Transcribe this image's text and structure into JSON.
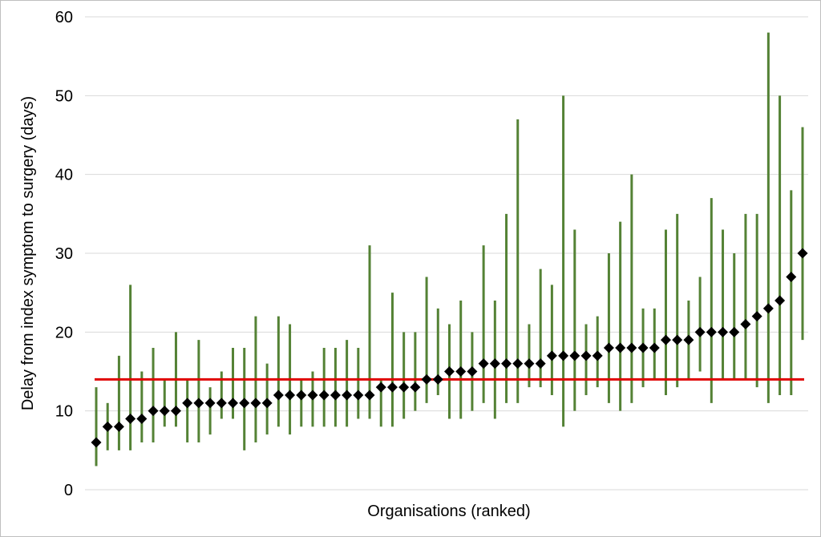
{
  "chart_data": {
    "type": "scatter",
    "title": "",
    "xlabel": "Organisations (ranked)",
    "ylabel": "Delay from index symptom to surgery (days)",
    "ylim": [
      0,
      60
    ],
    "yticks": [
      0,
      10,
      20,
      30,
      40,
      50,
      60
    ],
    "grid": true,
    "legend": "none",
    "reference_line": {
      "value": 14,
      "color": "#e00000"
    },
    "colors": {
      "point": "#000000",
      "interval": "#548235",
      "grid": "#d9d9d9"
    },
    "points": [
      {
        "rank": 1,
        "value": 6,
        "low": 3,
        "high": 13
      },
      {
        "rank": 2,
        "value": 8,
        "low": 5,
        "high": 11
      },
      {
        "rank": 3,
        "value": 8,
        "low": 5,
        "high": 17
      },
      {
        "rank": 4,
        "value": 9,
        "low": 5,
        "high": 26
      },
      {
        "rank": 5,
        "value": 9,
        "low": 6,
        "high": 15
      },
      {
        "rank": 6,
        "value": 10,
        "low": 6,
        "high": 18
      },
      {
        "rank": 7,
        "value": 10,
        "low": 8,
        "high": 14
      },
      {
        "rank": 8,
        "value": 10,
        "low": 8,
        "high": 20
      },
      {
        "rank": 9,
        "value": 11,
        "low": 6,
        "high": 14
      },
      {
        "rank": 10,
        "value": 11,
        "low": 6,
        "high": 19
      },
      {
        "rank": 11,
        "value": 11,
        "low": 7,
        "high": 13
      },
      {
        "rank": 12,
        "value": 11,
        "low": 9,
        "high": 15
      },
      {
        "rank": 13,
        "value": 11,
        "low": 9,
        "high": 18
      },
      {
        "rank": 14,
        "value": 11,
        "low": 5,
        "high": 18
      },
      {
        "rank": 15,
        "value": 11,
        "low": 6,
        "high": 22
      },
      {
        "rank": 16,
        "value": 11,
        "low": 7,
        "high": 16
      },
      {
        "rank": 17,
        "value": 12,
        "low": 8,
        "high": 22
      },
      {
        "rank": 18,
        "value": 12,
        "low": 7,
        "high": 21
      },
      {
        "rank": 19,
        "value": 12,
        "low": 8,
        "high": 14
      },
      {
        "rank": 20,
        "value": 12,
        "low": 8,
        "high": 15
      },
      {
        "rank": 21,
        "value": 12,
        "low": 8,
        "high": 18
      },
      {
        "rank": 22,
        "value": 12,
        "low": 8,
        "high": 18
      },
      {
        "rank": 23,
        "value": 12,
        "low": 8,
        "high": 19
      },
      {
        "rank": 24,
        "value": 12,
        "low": 9,
        "high": 18
      },
      {
        "rank": 25,
        "value": 12,
        "low": 9,
        "high": 31
      },
      {
        "rank": 26,
        "value": 13,
        "low": 8,
        "high": 14
      },
      {
        "rank": 27,
        "value": 13,
        "low": 8,
        "high": 25
      },
      {
        "rank": 28,
        "value": 13,
        "low": 9,
        "high": 20
      },
      {
        "rank": 29,
        "value": 13,
        "low": 10,
        "high": 20
      },
      {
        "rank": 30,
        "value": 14,
        "low": 11,
        "high": 27
      },
      {
        "rank": 31,
        "value": 14,
        "low": 12,
        "high": 23
      },
      {
        "rank": 32,
        "value": 15,
        "low": 9,
        "high": 21
      },
      {
        "rank": 33,
        "value": 15,
        "low": 9,
        "high": 24
      },
      {
        "rank": 34,
        "value": 15,
        "low": 10,
        "high": 20
      },
      {
        "rank": 35,
        "value": 16,
        "low": 11,
        "high": 31
      },
      {
        "rank": 36,
        "value": 16,
        "low": 9,
        "high": 24
      },
      {
        "rank": 37,
        "value": 16,
        "low": 11,
        "high": 35
      },
      {
        "rank": 38,
        "value": 16,
        "low": 11,
        "high": 47
      },
      {
        "rank": 39,
        "value": 16,
        "low": 13,
        "high": 21
      },
      {
        "rank": 40,
        "value": 16,
        "low": 13,
        "high": 28
      },
      {
        "rank": 41,
        "value": 17,
        "low": 12,
        "high": 26
      },
      {
        "rank": 42,
        "value": 17,
        "low": 8,
        "high": 50
      },
      {
        "rank": 43,
        "value": 17,
        "low": 10,
        "high": 33
      },
      {
        "rank": 44,
        "value": 17,
        "low": 12,
        "high": 21
      },
      {
        "rank": 45,
        "value": 17,
        "low": 13,
        "high": 22
      },
      {
        "rank": 46,
        "value": 18,
        "low": 11,
        "high": 30
      },
      {
        "rank": 47,
        "value": 18,
        "low": 10,
        "high": 34
      },
      {
        "rank": 48,
        "value": 18,
        "low": 11,
        "high": 40
      },
      {
        "rank": 49,
        "value": 18,
        "low": 13,
        "high": 23
      },
      {
        "rank": 50,
        "value": 18,
        "low": 14,
        "high": 23
      },
      {
        "rank": 51,
        "value": 19,
        "low": 12,
        "high": 33
      },
      {
        "rank": 52,
        "value": 19,
        "low": 13,
        "high": 35
      },
      {
        "rank": 53,
        "value": 19,
        "low": 14,
        "high": 24
      },
      {
        "rank": 54,
        "value": 20,
        "low": 15,
        "high": 27
      },
      {
        "rank": 55,
        "value": 20,
        "low": 11,
        "high": 37
      },
      {
        "rank": 56,
        "value": 20,
        "low": 14,
        "high": 33
      },
      {
        "rank": 57,
        "value": 20,
        "low": 14,
        "high": 30
      },
      {
        "rank": 58,
        "value": 21,
        "low": 14,
        "high": 35
      },
      {
        "rank": 59,
        "value": 22,
        "low": 13,
        "high": 35
      },
      {
        "rank": 60,
        "value": 23,
        "low": 11,
        "high": 58
      },
      {
        "rank": 61,
        "value": 24,
        "low": 12,
        "high": 50
      },
      {
        "rank": 62,
        "value": 27,
        "low": 12,
        "high": 38
      },
      {
        "rank": 63,
        "value": 30,
        "low": 19,
        "high": 46
      }
    ]
  }
}
